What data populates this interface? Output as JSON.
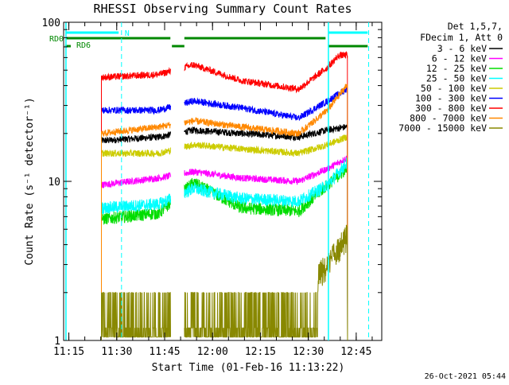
{
  "chart_data": {
    "type": "line",
    "title": "RHESSI Observing Summary Count Rates",
    "xlabel": "Start Time (01-Feb-16 11:13:22)",
    "ylabel": "Count Rate (s⁻¹ detector⁻¹)",
    "y_scale": "log",
    "ylim": [
      1,
      100
    ],
    "y_ticks": [
      {
        "value": 1,
        "label": "1"
      },
      {
        "value": 10,
        "label": "10"
      },
      {
        "value": 100,
        "label": "100"
      }
    ],
    "x_range_minutes": [
      "11:13:22",
      "12:53:00"
    ],
    "x_ticks": [
      {
        "time": "11:15",
        "label": "11:15"
      },
      {
        "time": "11:30",
        "label": "11:30"
      },
      {
        "time": "11:45",
        "label": "11:45"
      },
      {
        "time": "12:00",
        "label": "12:00"
      },
      {
        "time": "12:15",
        "label": "12:15"
      },
      {
        "time": "12:30",
        "label": "12:30"
      },
      {
        "time": "12:45",
        "label": "12:45"
      }
    ],
    "legend": {
      "header": [
        "Det 1,5,7,",
        "FDecim 1, Att 0"
      ],
      "placement": "right"
    },
    "series": [
      {
        "name": "3 - 6 keV",
        "color": "#000000",
        "values": [
          [
            11.42,
            18
          ],
          [
            11.72,
            19
          ],
          [
            11.9,
            21
          ],
          [
            12.15,
            20
          ],
          [
            12.45,
            19
          ],
          [
            12.6,
            21
          ],
          [
            12.7,
            22
          ]
        ]
      },
      {
        "name": "6 - 12 keV",
        "color": "#ff00ff",
        "values": [
          [
            11.42,
            9.5
          ],
          [
            11.72,
            10.5
          ],
          [
            11.9,
            11.5
          ],
          [
            12.15,
            10.5
          ],
          [
            12.45,
            10
          ],
          [
            12.6,
            12
          ],
          [
            12.7,
            14
          ]
        ]
      },
      {
        "name": "12 - 25 keV",
        "color": "#00dd00",
        "values": [
          [
            11.42,
            5.8
          ],
          [
            11.72,
            6.3
          ],
          [
            11.9,
            9.8
          ],
          [
            12.15,
            6.8
          ],
          [
            12.45,
            6.5
          ],
          [
            12.6,
            9.5
          ],
          [
            12.7,
            12
          ]
        ]
      },
      {
        "name": "25 - 50 keV",
        "color": "#00ffff",
        "values": [
          [
            11.42,
            6.8
          ],
          [
            11.72,
            7.2
          ],
          [
            11.9,
            9
          ],
          [
            12.15,
            7.8
          ],
          [
            12.45,
            7.5
          ],
          [
            12.6,
            9.5
          ],
          [
            12.7,
            13
          ]
        ]
      },
      {
        "name": "50 - 100 keV",
        "color": "#cccc00",
        "values": [
          [
            11.42,
            15
          ],
          [
            11.72,
            15
          ],
          [
            11.9,
            17
          ],
          [
            12.15,
            16
          ],
          [
            12.45,
            15
          ],
          [
            12.6,
            17
          ],
          [
            12.7,
            19
          ]
        ]
      },
      {
        "name": "100 - 300 keV",
        "color": "#0000ff",
        "values": [
          [
            11.42,
            28
          ],
          [
            11.72,
            28
          ],
          [
            11.9,
            32
          ],
          [
            12.15,
            29
          ],
          [
            12.45,
            25
          ],
          [
            12.6,
            32
          ],
          [
            12.7,
            38
          ]
        ]
      },
      {
        "name": "300 - 800 keV",
        "color": "#ff0000",
        "values": [
          [
            11.42,
            45
          ],
          [
            11.72,
            47
          ],
          [
            11.9,
            54
          ],
          [
            12.15,
            43
          ],
          [
            12.45,
            38
          ],
          [
            12.6,
            52
          ],
          [
            12.66,
            62
          ]
        ]
      },
      {
        "name": "800 - 7000 keV",
        "color": "#ff8800",
        "values": [
          [
            11.42,
            20
          ],
          [
            11.72,
            22
          ],
          [
            11.9,
            24
          ],
          [
            12.15,
            22
          ],
          [
            12.45,
            20
          ],
          [
            12.6,
            28
          ],
          [
            12.7,
            40
          ]
        ]
      },
      {
        "name": "7000 - 15000 keV",
        "color": "#888800",
        "values": [
          [
            11.42,
            1.6
          ],
          [
            11.72,
            1.7
          ],
          [
            11.9,
            1.5
          ],
          [
            12.15,
            1.6
          ],
          [
            12.45,
            1.8
          ],
          [
            12.6,
            3
          ],
          [
            12.7,
            4.5
          ]
        ]
      }
    ],
    "annotations": {
      "n_label": "N",
      "rd0_label": "RD0",
      "rd6_label": "RD6",
      "timestamp": "26-Oct-2021 05:44"
    },
    "colors": {
      "night_bar": "#00ffff",
      "rd_bar": "#008800",
      "vertical_marker": "#00ffff"
    }
  }
}
